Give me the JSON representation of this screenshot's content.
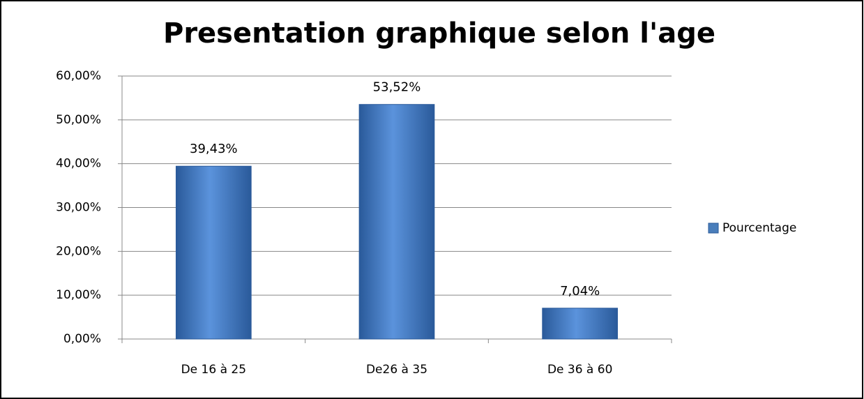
{
  "chart_data": {
    "type": "bar",
    "title": "Presentation graphique selon l'age",
    "categories": [
      "De 16 à 25",
      "De26 à 35",
      "De 36 à 60"
    ],
    "series": [
      {
        "name": "Pourcentage",
        "color": "#4a7ebb",
        "values": [
          39.43,
          53.52,
          7.04
        ],
        "value_labels": [
          "39,43%",
          "53,52%",
          "7,04%"
        ]
      }
    ],
    "ylim": [
      0,
      60
    ],
    "yticks": [
      {
        "value": 0,
        "label": "0,00%"
      },
      {
        "value": 10,
        "label": "10,00%"
      },
      {
        "value": 20,
        "label": "20,00%"
      },
      {
        "value": 30,
        "label": "30,00%"
      },
      {
        "value": 40,
        "label": "40,00%"
      },
      {
        "value": 50,
        "label": "50,00%"
      },
      {
        "value": 60,
        "label": "60,00%"
      }
    ],
    "grid": true,
    "legend": "right"
  }
}
